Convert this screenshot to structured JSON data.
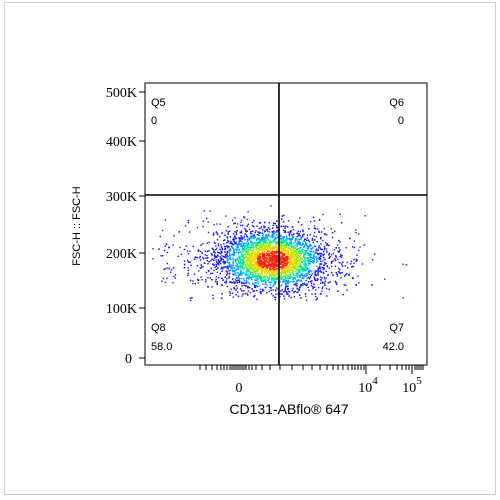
{
  "chart_data": {
    "type": "scatter",
    "subtype": "flow-cytometry-density-dot-plot",
    "xlabel": "CD131-ABflo® 647",
    "ylabel": "FSC-H :: FSC-H",
    "x_scale": "biexponential",
    "x_tick_labels": [
      {
        "label": "0",
        "value": 0
      },
      {
        "label": "10",
        "sup": "4",
        "value": 10000
      },
      {
        "label": "10",
        "sup": "5",
        "value": 100000
      }
    ],
    "y_ticks": [
      {
        "label": "0",
        "value": 0
      },
      {
        "label": "100K",
        "value": 100000
      },
      {
        "label": "200K",
        "value": 200000
      },
      {
        "label": "300K",
        "value": 300000
      },
      {
        "label": "400K",
        "value": 400000
      },
      {
        "label": "500K",
        "value": 500000
      }
    ],
    "ylim": [
      0,
      520000
    ],
    "quadrant_gate": {
      "x": 1000,
      "y": 300000
    },
    "quadrants": [
      {
        "name": "Q5",
        "value": "0",
        "position": "top-left"
      },
      {
        "name": "Q6",
        "value": "0",
        "position": "top-right"
      },
      {
        "name": "Q7",
        "value": "42.0",
        "position": "bottom-right"
      },
      {
        "name": "Q8",
        "value": "58.0",
        "position": "bottom-left"
      }
    ],
    "population": {
      "center": {
        "x": 600,
        "y": 185000
      },
      "spread": "x approx -1800 to 3500, y approx 100000 to 260000",
      "color_map": [
        "#1a1aff",
        "#00a0ff",
        "#00e0a0",
        "#a0f000",
        "#ffd000",
        "#ff2000"
      ]
    },
    "grid": false,
    "legend": "none"
  }
}
